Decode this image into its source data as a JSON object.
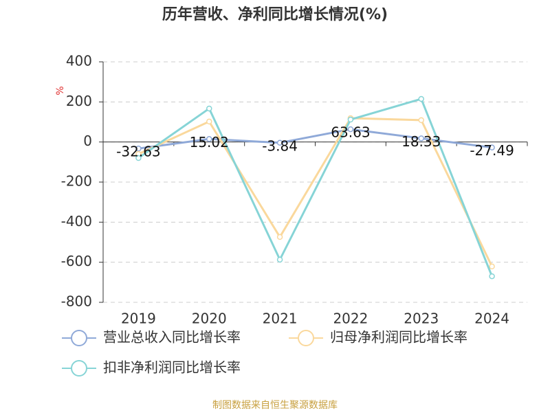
{
  "chart_data": {
    "type": "line",
    "title": "历年营收、净利同比增长情况(%)",
    "y_label": "%",
    "categories": [
      "2019",
      "2020",
      "2021",
      "2022",
      "2023",
      "2024"
    ],
    "series": [
      {
        "name": "营业总收入同比增长率",
        "color": "#8fa9d8",
        "values": [
          -32.63,
          15.02,
          -3.84,
          63.63,
          18.33,
          -27.49
        ]
      },
      {
        "name": "归母净利润同比增长率",
        "color": "#fad89c",
        "values": [
          -60,
          102,
          -474,
          119,
          109,
          -621
        ]
      },
      {
        "name": "扣非净利润同比增长率",
        "color": "#86d4d6",
        "values": [
          -80,
          167,
          -587,
          112,
          215,
          -670
        ]
      }
    ],
    "ylim": [
      -800,
      400
    ],
    "yticks": [
      -800,
      -600,
      -400,
      -200,
      0,
      200,
      400
    ],
    "grid": true,
    "source": "制图数据来自恒生聚源数据库"
  }
}
